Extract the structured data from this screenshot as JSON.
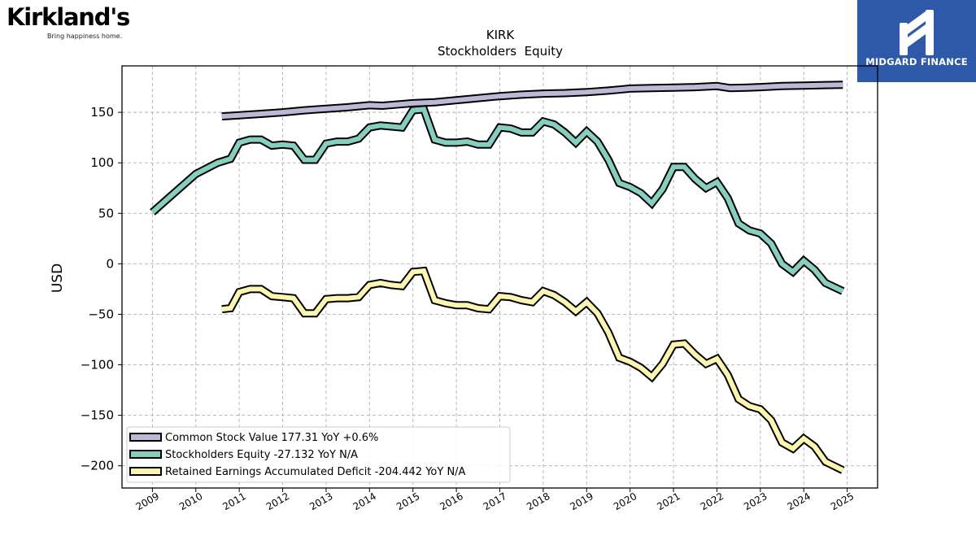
{
  "brand": {
    "name": "Kirkland's",
    "tagline": "Bring happiness home."
  },
  "sponsor": {
    "name": "MIDGARD FINANCE"
  },
  "chart_data": {
    "type": "line",
    "title": "KIRK",
    "subtitle": "Stockholders  Equity",
    "xlabel": "",
    "ylabel": "USD",
    "xlim": [
      2008.3,
      2025.7
    ],
    "ylim": [
      -222,
      196
    ],
    "x_ticks": [
      "2009",
      "2010",
      "2011",
      "2012",
      "2013",
      "2014",
      "2015",
      "2016",
      "2017",
      "2018",
      "2019",
      "2020",
      "2021",
      "2022",
      "2023",
      "2024",
      "2025"
    ],
    "y_ticks": [
      150,
      100,
      50,
      0,
      -50,
      -100,
      -150,
      -200
    ],
    "y_tick_labels": [
      "150",
      "100",
      "50",
      "0",
      "−50",
      "−100",
      "−150",
      "−200"
    ],
    "grid": true,
    "legend_position": "lower-left",
    "series": [
      {
        "name": "Common Stock Value  177.31 YoY +0.6%",
        "color": "#bcb8d6",
        "points": [
          [
            2010.6,
            146
          ],
          [
            2011.0,
            147
          ],
          [
            2011.5,
            148.5
          ],
          [
            2012.0,
            150
          ],
          [
            2012.5,
            152
          ],
          [
            2013.0,
            153.5
          ],
          [
            2013.5,
            155
          ],
          [
            2014.0,
            157
          ],
          [
            2014.3,
            156.5
          ],
          [
            2014.7,
            158
          ],
          [
            2015.0,
            159
          ],
          [
            2015.5,
            160
          ],
          [
            2016.0,
            162
          ],
          [
            2016.5,
            164
          ],
          [
            2017.0,
            166
          ],
          [
            2017.5,
            167.5
          ],
          [
            2018.0,
            168.5
          ],
          [
            2018.5,
            169
          ],
          [
            2019.0,
            170
          ],
          [
            2019.5,
            171.5
          ],
          [
            2020.0,
            173.5
          ],
          [
            2020.5,
            174
          ],
          [
            2021.0,
            174.5
          ],
          [
            2021.5,
            175
          ],
          [
            2022.0,
            176
          ],
          [
            2022.3,
            174
          ],
          [
            2022.7,
            174.5
          ],
          [
            2023.0,
            175
          ],
          [
            2023.5,
            176
          ],
          [
            2024.0,
            176.5
          ],
          [
            2024.5,
            177
          ],
          [
            2024.9,
            177.31
          ]
        ]
      },
      {
        "name": "Stockholders Equity  -27.132 YoY N/A",
        "color": "#86cfc0",
        "points": [
          [
            2009.0,
            51
          ],
          [
            2009.5,
            70
          ],
          [
            2010.0,
            89
          ],
          [
            2010.5,
            100
          ],
          [
            2010.8,
            104
          ],
          [
            2011.0,
            120
          ],
          [
            2011.25,
            123
          ],
          [
            2011.5,
            123
          ],
          [
            2011.75,
            117
          ],
          [
            2012.0,
            118
          ],
          [
            2012.25,
            117
          ],
          [
            2012.5,
            103
          ],
          [
            2012.75,
            103
          ],
          [
            2013.0,
            119
          ],
          [
            2013.25,
            121
          ],
          [
            2013.5,
            121
          ],
          [
            2013.75,
            124
          ],
          [
            2014.0,
            135
          ],
          [
            2014.25,
            137
          ],
          [
            2014.5,
            136
          ],
          [
            2014.75,
            135
          ],
          [
            2015.0,
            152
          ],
          [
            2015.25,
            153
          ],
          [
            2015.5,
            123
          ],
          [
            2015.75,
            120
          ],
          [
            2016.0,
            120
          ],
          [
            2016.25,
            121
          ],
          [
            2016.5,
            118
          ],
          [
            2016.75,
            118
          ],
          [
            2017.0,
            135
          ],
          [
            2017.25,
            134
          ],
          [
            2017.5,
            130
          ],
          [
            2017.75,
            130
          ],
          [
            2018.0,
            141
          ],
          [
            2018.25,
            138
          ],
          [
            2018.5,
            130
          ],
          [
            2018.75,
            120
          ],
          [
            2019.0,
            131
          ],
          [
            2019.25,
            121
          ],
          [
            2019.5,
            103
          ],
          [
            2019.75,
            80
          ],
          [
            2020.0,
            76
          ],
          [
            2020.25,
            70
          ],
          [
            2020.5,
            60
          ],
          [
            2020.75,
            74
          ],
          [
            2021.0,
            96
          ],
          [
            2021.25,
            96
          ],
          [
            2021.5,
            84
          ],
          [
            2021.75,
            75
          ],
          [
            2022.0,
            81
          ],
          [
            2022.25,
            65
          ],
          [
            2022.5,
            40
          ],
          [
            2022.75,
            33
          ],
          [
            2023.0,
            30
          ],
          [
            2023.25,
            20
          ],
          [
            2023.5,
            0
          ],
          [
            2023.75,
            -8
          ],
          [
            2024.0,
            3
          ],
          [
            2024.25,
            -6
          ],
          [
            2024.5,
            -19
          ],
          [
            2024.9,
            -27.132
          ]
        ]
      },
      {
        "name": "Retained Earnings Accumulated Deficit  -204.442 YoY N/A",
        "color": "#fdf6b0",
        "points": [
          [
            2010.6,
            -45
          ],
          [
            2010.8,
            -44
          ],
          [
            2011.0,
            -28
          ],
          [
            2011.25,
            -25
          ],
          [
            2011.5,
            -25
          ],
          [
            2011.75,
            -32
          ],
          [
            2012.0,
            -33
          ],
          [
            2012.25,
            -34
          ],
          [
            2012.5,
            -49
          ],
          [
            2012.75,
            -49
          ],
          [
            2013.0,
            -35
          ],
          [
            2013.25,
            -34
          ],
          [
            2013.5,
            -34
          ],
          [
            2013.75,
            -33
          ],
          [
            2014.0,
            -21
          ],
          [
            2014.25,
            -19
          ],
          [
            2014.5,
            -21
          ],
          [
            2014.75,
            -22
          ],
          [
            2015.0,
            -8
          ],
          [
            2015.25,
            -7
          ],
          [
            2015.5,
            -36
          ],
          [
            2015.75,
            -39
          ],
          [
            2016.0,
            -41
          ],
          [
            2016.25,
            -41
          ],
          [
            2016.5,
            -44
          ],
          [
            2016.75,
            -45
          ],
          [
            2017.0,
            -32
          ],
          [
            2017.25,
            -33
          ],
          [
            2017.5,
            -36
          ],
          [
            2017.75,
            -38
          ],
          [
            2018.0,
            -27
          ],
          [
            2018.25,
            -31
          ],
          [
            2018.5,
            -38
          ],
          [
            2018.75,
            -47
          ],
          [
            2019.0,
            -38
          ],
          [
            2019.25,
            -49
          ],
          [
            2019.5,
            -68
          ],
          [
            2019.75,
            -93
          ],
          [
            2020.0,
            -97
          ],
          [
            2020.25,
            -103
          ],
          [
            2020.5,
            -112
          ],
          [
            2020.75,
            -99
          ],
          [
            2021.0,
            -80
          ],
          [
            2021.25,
            -79
          ],
          [
            2021.5,
            -90
          ],
          [
            2021.75,
            -99
          ],
          [
            2022.0,
            -94
          ],
          [
            2022.25,
            -110
          ],
          [
            2022.5,
            -134
          ],
          [
            2022.75,
            -141
          ],
          [
            2023.0,
            -144
          ],
          [
            2023.25,
            -155
          ],
          [
            2023.5,
            -177
          ],
          [
            2023.75,
            -183
          ],
          [
            2024.0,
            -173
          ],
          [
            2024.25,
            -181
          ],
          [
            2024.5,
            -196
          ],
          [
            2024.9,
            -204.442
          ]
        ]
      }
    ]
  }
}
